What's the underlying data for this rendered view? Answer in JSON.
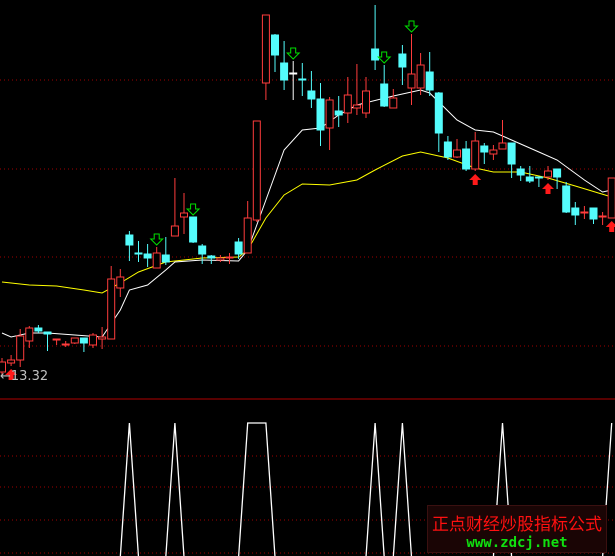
{
  "chart_data": [
    {
      "type": "candlestick",
      "panel": "main",
      "annotation": {
        "label": "←13.32",
        "value": 13.32
      },
      "ylim": [
        13.32,
        31.82
      ],
      "grid": "dotted-horizontal",
      "colors": {
        "up": "#ff3c3c",
        "down": "#54fcfc",
        "doji": "#ffffff",
        "ma_fast": "#ffffff",
        "ma_slow": "#ffff00",
        "buy": "#ff1a1a",
        "sell": "#00e000",
        "grid": "#a00000"
      },
      "ohlc": [
        [
          13.47,
          14.17,
          13.32,
          13.97
        ],
        [
          13.92,
          14.32,
          13.77,
          14.07
        ],
        [
          14.07,
          15.62,
          13.72,
          15.27
        ],
        [
          15.02,
          15.77,
          14.67,
          15.67
        ],
        [
          15.67,
          15.82,
          15.42,
          15.52
        ],
        [
          15.47,
          15.47,
          14.52,
          15.37
        ],
        [
          15.07,
          15.12,
          14.82,
          15.12
        ],
        [
          14.82,
          15.02,
          14.72,
          14.87
        ],
        [
          14.92,
          15.17,
          14.87,
          15.17
        ],
        [
          15.17,
          15.17,
          14.47,
          14.92
        ],
        [
          14.82,
          15.42,
          14.67,
          15.32
        ],
        [
          15.12,
          15.72,
          14.62,
          15.22
        ],
        [
          15.12,
          18.77,
          15.12,
          18.12
        ],
        [
          17.67,
          18.62,
          17.22,
          18.22
        ],
        [
          20.32,
          20.52,
          19.02,
          19.82
        ],
        [
          19.42,
          20.02,
          18.97,
          19.37
        ],
        [
          19.37,
          19.87,
          18.72,
          19.17
        ],
        [
          18.67,
          19.72,
          18.67,
          19.42
        ],
        [
          19.32,
          20.22,
          18.82,
          18.97
        ],
        [
          20.27,
          23.17,
          20.27,
          20.77
        ],
        [
          21.22,
          22.42,
          20.37,
          21.42
        ],
        [
          21.22,
          21.22,
          19.92,
          19.97
        ],
        [
          19.77,
          19.87,
          18.87,
          19.37
        ],
        [
          19.27,
          19.32,
          18.87,
          19.17
        ],
        [
          19.07,
          19.32,
          18.97,
          19.17
        ],
        [
          19.17,
          19.42,
          18.87,
          19.22
        ],
        [
          19.97,
          20.17,
          19.12,
          19.37
        ],
        [
          19.42,
          22.02,
          19.42,
          21.17
        ],
        [
          21.07,
          26.02,
          20.97,
          26.02
        ],
        [
          27.92,
          31.32,
          27.07,
          31.32
        ],
        [
          30.32,
          30.37,
          28.47,
          29.32
        ],
        [
          28.92,
          30.02,
          27.57,
          28.07
        ],
        [
          28.42,
          29.02,
          27.07,
          28.42
        ],
        [
          28.12,
          28.92,
          27.27,
          28.07
        ],
        [
          27.52,
          28.52,
          26.67,
          27.12
        ],
        [
          27.12,
          27.92,
          24.77,
          25.57
        ],
        [
          25.67,
          27.22,
          24.57,
          27.07
        ],
        [
          26.52,
          27.27,
          25.72,
          26.32
        ],
        [
          26.42,
          28.22,
          25.92,
          27.32
        ],
        [
          26.67,
          28.87,
          26.32,
          26.82
        ],
        [
          26.42,
          28.22,
          26.17,
          27.52
        ],
        [
          29.62,
          31.82,
          28.57,
          29.07
        ],
        [
          27.87,
          28.82,
          26.72,
          26.77
        ],
        [
          26.67,
          27.62,
          26.67,
          27.17
        ],
        [
          29.37,
          29.82,
          27.82,
          28.72
        ],
        [
          27.67,
          30.37,
          26.82,
          28.37
        ],
        [
          27.67,
          29.42,
          27.32,
          28.82
        ],
        [
          28.47,
          29.47,
          27.27,
          27.57
        ],
        [
          27.42,
          27.47,
          24.47,
          25.42
        ],
        [
          24.97,
          25.27,
          24.07,
          24.22
        ],
        [
          24.22,
          25.12,
          24.17,
          24.57
        ],
        [
          24.62,
          25.02,
          23.52,
          23.62
        ],
        [
          23.62,
          25.47,
          23.52,
          25.02
        ],
        [
          24.77,
          24.92,
          23.87,
          24.47
        ],
        [
          24.37,
          24.82,
          24.07,
          24.57
        ],
        [
          24.62,
          26.07,
          24.62,
          24.92
        ],
        [
          24.92,
          24.92,
          23.17,
          23.87
        ],
        [
          23.62,
          23.77,
          23.02,
          23.32
        ],
        [
          23.22,
          23.77,
          22.92,
          23.02
        ],
        [
          23.22,
          23.22,
          22.72,
          23.17
        ],
        [
          23.22,
          23.77,
          23.07,
          23.52
        ],
        [
          23.62,
          23.62,
          22.62,
          23.22
        ],
        [
          22.77,
          22.97,
          21.42,
          21.47
        ],
        [
          21.67,
          21.97,
          20.82,
          21.32
        ],
        [
          21.42,
          21.77,
          21.12,
          21.47
        ],
        [
          21.67,
          21.67,
          20.87,
          21.12
        ],
        [
          21.22,
          21.47,
          20.82,
          21.27
        ],
        [
          21.17,
          23.17,
          21.17,
          23.17
        ]
      ],
      "ma_fast": [
        [
          1,
          15.42
        ],
        [
          2,
          15.22
        ],
        [
          4,
          15.42
        ],
        [
          6,
          15.42
        ],
        [
          9,
          15.32
        ],
        [
          12,
          15.22
        ],
        [
          14,
          16.57
        ],
        [
          15,
          17.57
        ],
        [
          17,
          17.82
        ],
        [
          19,
          18.57
        ],
        [
          20,
          18.97
        ],
        [
          23,
          19.07
        ],
        [
          27,
          19.02
        ],
        [
          28,
          19.57
        ],
        [
          30,
          22.07
        ],
        [
          32,
          24.57
        ],
        [
          34,
          25.57
        ],
        [
          36,
          25.67
        ],
        [
          38,
          26.32
        ],
        [
          40,
          26.82
        ],
        [
          44,
          27.27
        ],
        [
          47,
          27.57
        ],
        [
          48,
          27.42
        ],
        [
          51,
          26.07
        ],
        [
          53,
          25.57
        ],
        [
          55,
          25.47
        ],
        [
          57,
          25.07
        ],
        [
          60,
          24.47
        ],
        [
          62,
          24.07
        ],
        [
          65,
          23.07
        ],
        [
          67,
          22.47
        ],
        [
          68,
          22.57
        ]
      ],
      "ma_slow": [
        [
          1,
          17.97
        ],
        [
          4,
          17.82
        ],
        [
          7,
          17.77
        ],
        [
          10,
          17.57
        ],
        [
          12,
          17.42
        ],
        [
          14,
          17.92
        ],
        [
          16,
          18.47
        ],
        [
          19,
          18.97
        ],
        [
          23,
          19.17
        ],
        [
          27,
          19.22
        ],
        [
          28,
          19.57
        ],
        [
          30,
          21.17
        ],
        [
          32,
          22.32
        ],
        [
          34,
          22.87
        ],
        [
          37,
          22.82
        ],
        [
          40,
          23.07
        ],
        [
          42,
          23.57
        ],
        [
          45,
          24.27
        ],
        [
          47,
          24.47
        ],
        [
          50,
          24.17
        ],
        [
          53,
          23.67
        ],
        [
          55,
          23.47
        ],
        [
          58,
          23.47
        ],
        [
          61,
          23.17
        ],
        [
          64,
          22.77
        ],
        [
          68,
          22.22
        ]
      ],
      "buy_signals": [
        2,
        53,
        61,
        68
      ],
      "sell_signals": [
        18,
        22,
        33,
        43,
        46
      ]
    },
    {
      "type": "line",
      "panel": "indicator",
      "ylim": [
        0,
        1
      ],
      "color": "#ffffff",
      "peaks_at_value_1": [
        15,
        20,
        28,
        29,
        30,
        42,
        45,
        56,
        68
      ]
    }
  ],
  "watermark": {
    "title": "正点财经炒股指标公式",
    "url": "www.zdcj.net"
  }
}
